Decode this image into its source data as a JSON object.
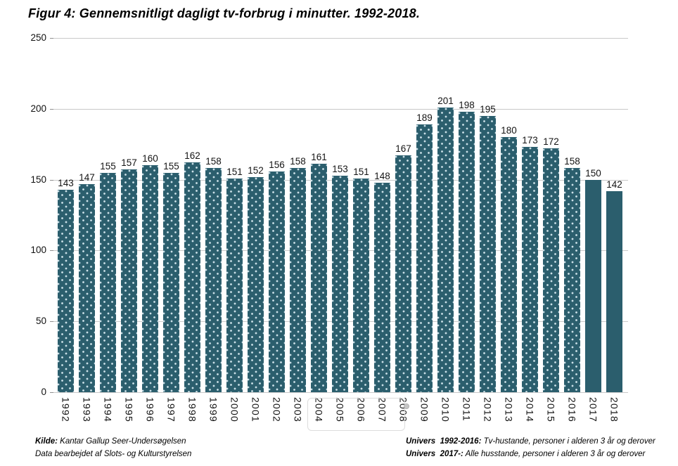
{
  "chart_data": {
    "type": "bar",
    "title": "Figur 4: Gennemsnitligt dagligt tv-forbrug i minutter. 1992-2018.",
    "xlabel": "",
    "ylabel": "",
    "categories": [
      "1992",
      "1993",
      "1994",
      "1995",
      "1996",
      "1997",
      "1998",
      "1999",
      "2000",
      "2001",
      "2002",
      "2003",
      "2004",
      "2005",
      "2006",
      "2007",
      "2008",
      "2009",
      "2010",
      "2011",
      "2012",
      "2013",
      "2014",
      "2015",
      "2016",
      "2017",
      "2018"
    ],
    "values": [
      143,
      147,
      155,
      157,
      160,
      155,
      162,
      158,
      151,
      152,
      156,
      158,
      161,
      153,
      151,
      148,
      167,
      189,
      201,
      198,
      195,
      180,
      173,
      172,
      158,
      150,
      142
    ],
    "ylim": [
      0,
      250
    ],
    "yticks": [
      0,
      50,
      100,
      150,
      200,
      250
    ],
    "grid": true,
    "legend": false,
    "data_labels": true,
    "bar_color": "#2b5e6d",
    "dot_color": "#d4e7ee",
    "gridline_color": "#c9c9c9",
    "pattern_dotted_years": [
      "1992",
      "1993",
      "1994",
      "1995",
      "1996",
      "1997",
      "1998",
      "1999",
      "2000",
      "2001",
      "2002",
      "2003",
      "2004",
      "2005",
      "2006",
      "2007",
      "2008",
      "2009",
      "2010",
      "2011",
      "2012",
      "2013",
      "2014",
      "2015",
      "2016"
    ],
    "solid_years": [
      "2017",
      "2018"
    ]
  },
  "footer": {
    "left": [
      {
        "bold": "Kilde:",
        "text": " Kantar Gallup Seer-Undersøgelsen"
      },
      {
        "bold": "",
        "text": "Data bearbejdet af Slots- og Kulturstyrelsen"
      }
    ],
    "right": [
      {
        "bold": "Univers  1992-2016:",
        "text": " Tv-hustande, personer i alderen 3 år og derover"
      },
      {
        "bold": "Univers  2017-:",
        "text": " Alle husstande, personer i alderen 3 år og derover"
      }
    ]
  }
}
